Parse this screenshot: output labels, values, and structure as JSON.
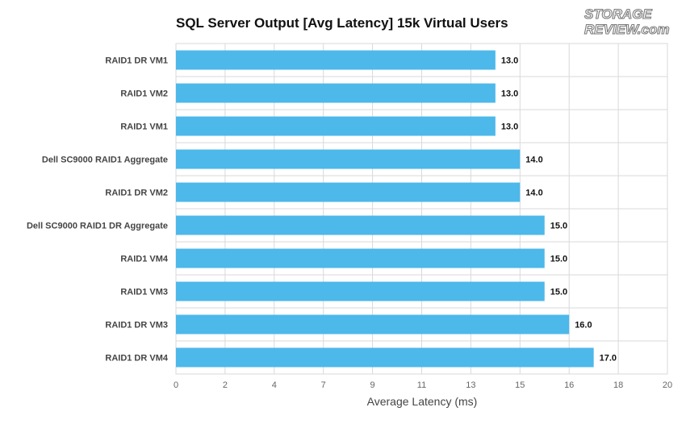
{
  "chart_data": {
    "type": "bar",
    "orientation": "horizontal",
    "title": "SQL Server Output [Avg Latency] 15k Virtual Users",
    "xlabel": "Average Latency (ms)",
    "ylabel": "",
    "xlim": [
      0,
      20
    ],
    "xticks": [
      "0",
      "2",
      "4",
      "7",
      "9",
      "11",
      "13",
      "15",
      "16",
      "18",
      "20"
    ],
    "categories": [
      "RAID1 DR VM1",
      "RAID1 VM2",
      "RAID1 VM1",
      "Dell SC9000 RAID1 Aggregate",
      "RAID1 DR VM2",
      "Dell SC9000 RAID1 DR Aggregate",
      "RAID1 VM4",
      "RAID1 VM3",
      "RAID1 DR VM3",
      "RAID1 DR VM4"
    ],
    "values": [
      13.0,
      13.0,
      13.0,
      14.0,
      14.0,
      15.0,
      15.0,
      15.0,
      16.0,
      17.0
    ],
    "value_labels": [
      "13.0",
      "13.0",
      "13.0",
      "14.0",
      "14.0",
      "15.0",
      "15.0",
      "15.0",
      "16.0",
      "17.0"
    ],
    "grid": true,
    "bar_color": "#4db8ea"
  },
  "logo": {
    "line1": "STORAGE",
    "line2": "REVIEW.com"
  }
}
